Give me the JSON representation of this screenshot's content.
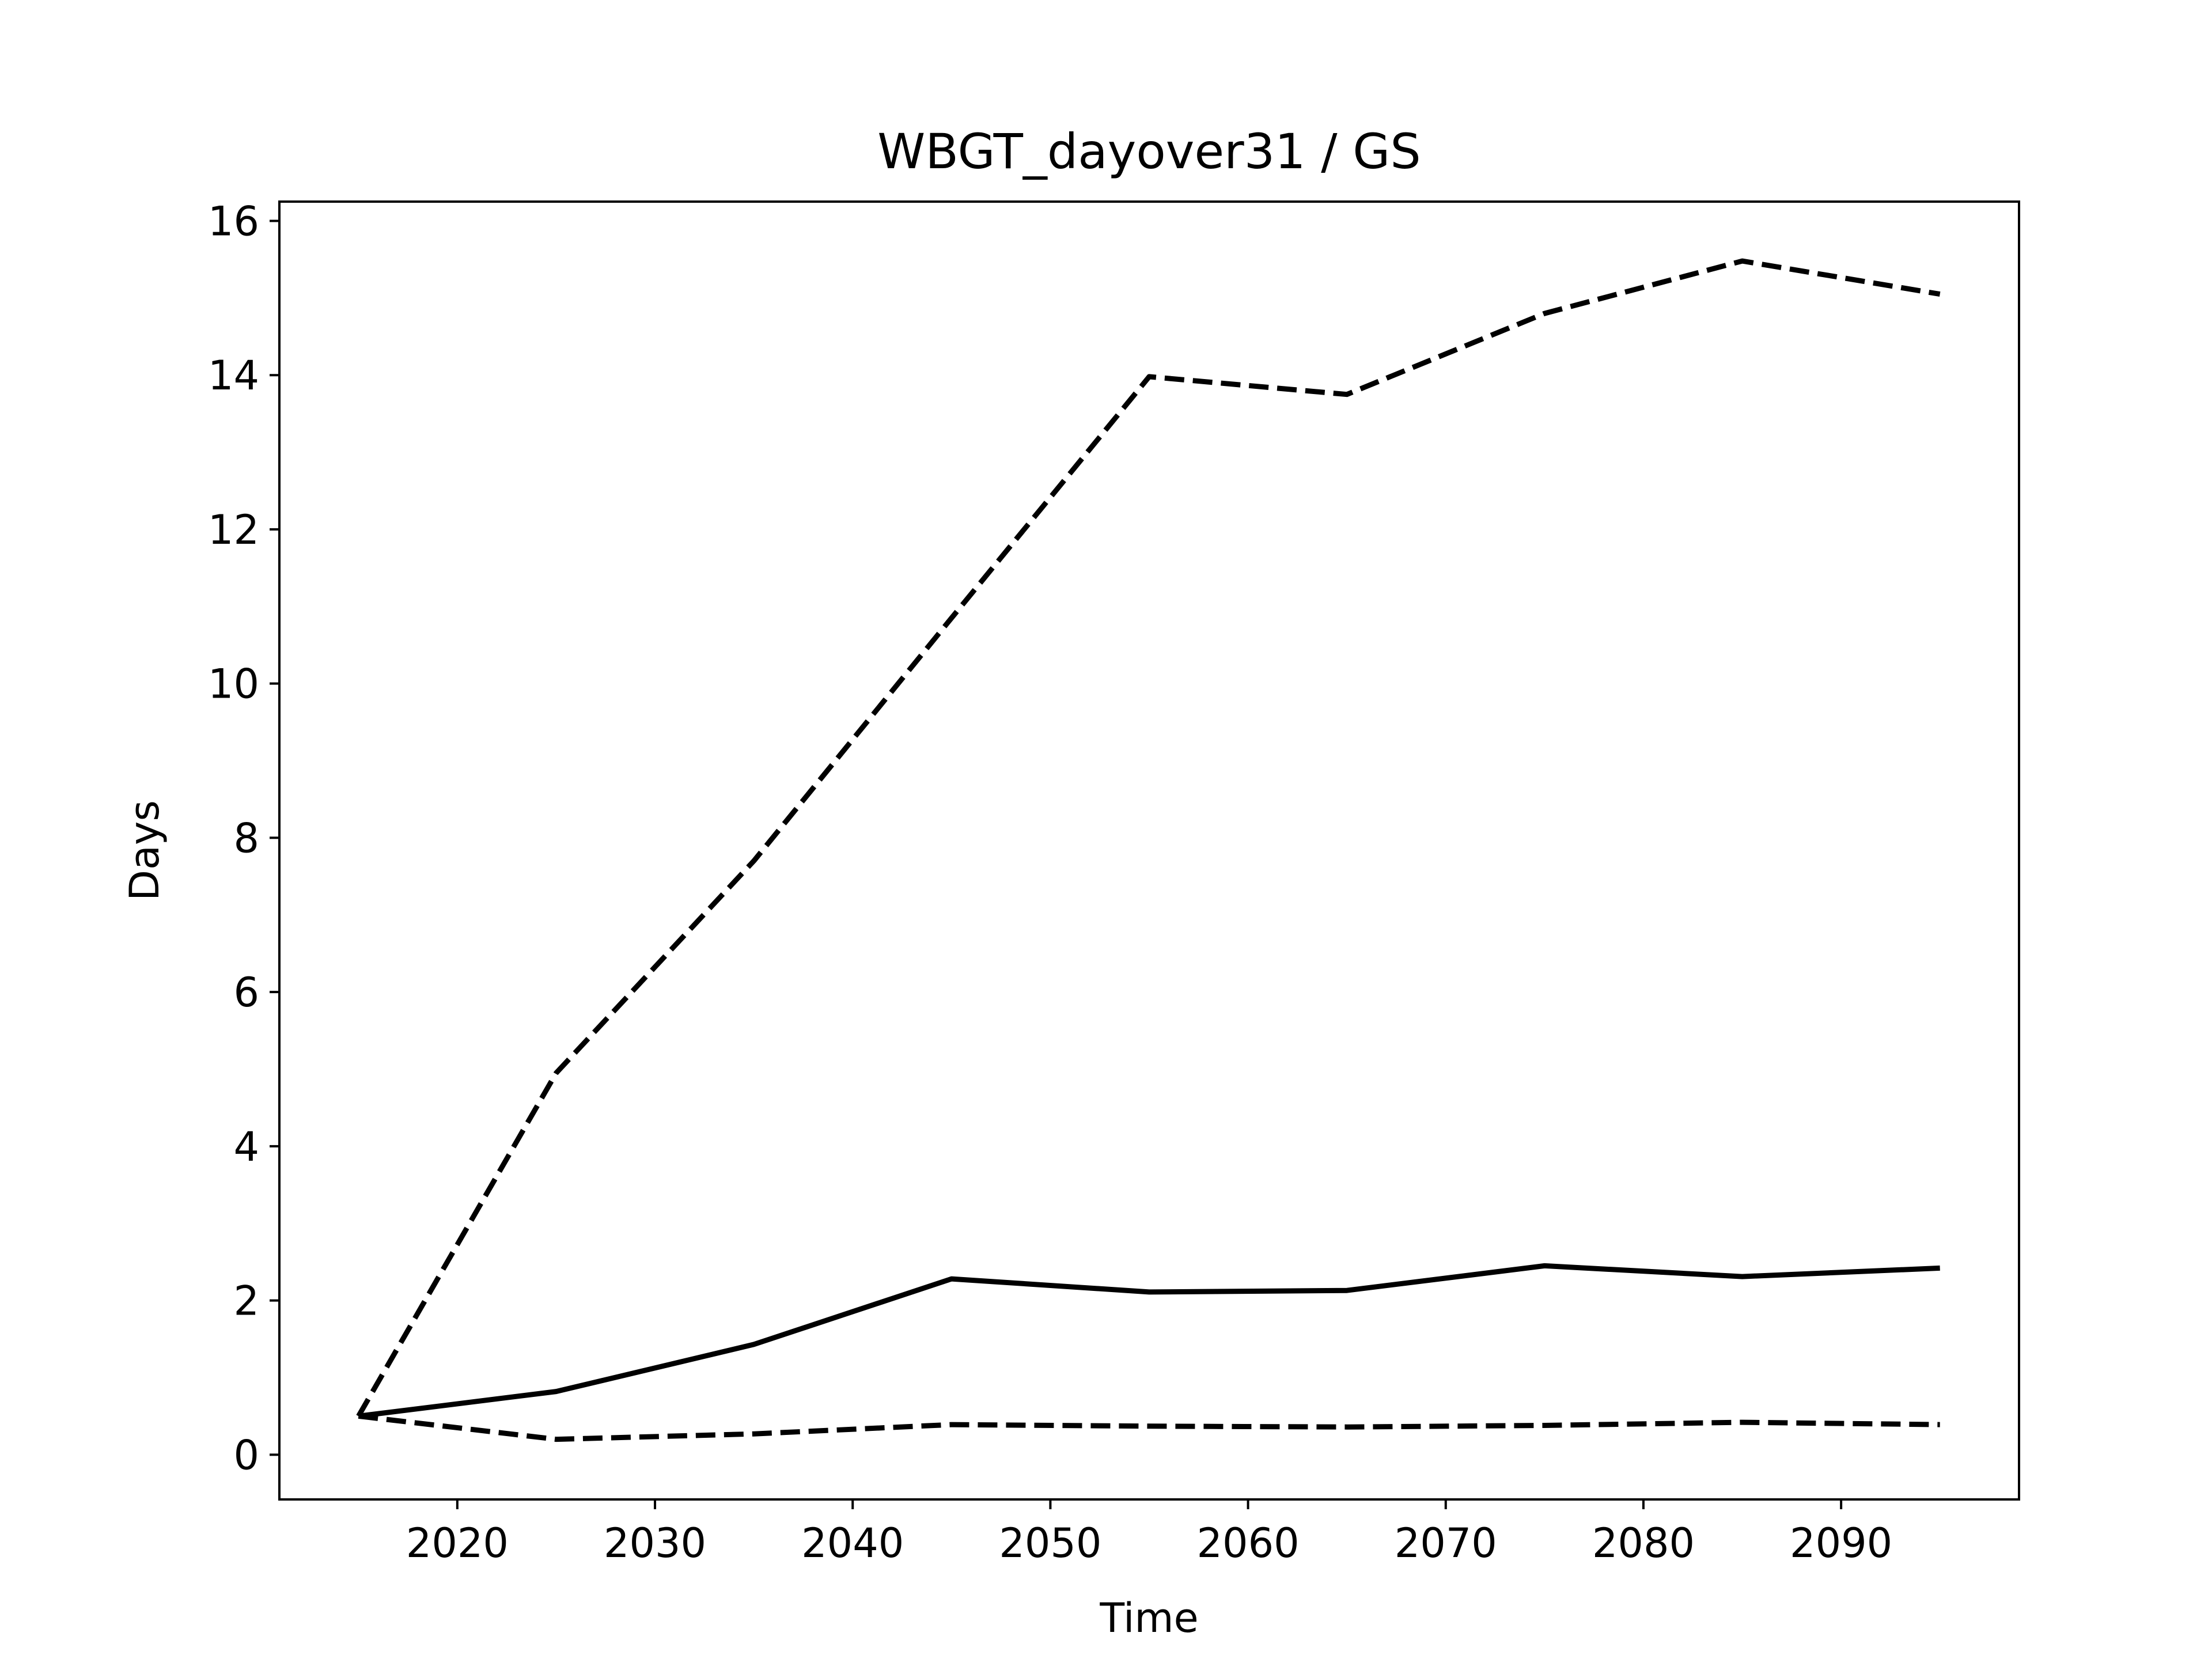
{
  "chart_data": {
    "type": "line",
    "title": "WBGT_dayover31 / GS",
    "xlabel": "Time",
    "ylabel": "Days",
    "xlim": [
      2011,
      2099
    ],
    "ylim": [
      -0.58,
      16.25
    ],
    "xticks": [
      2020,
      2030,
      2040,
      2050,
      2060,
      2070,
      2080,
      2090
    ],
    "yticks": [
      0,
      2,
      4,
      6,
      8,
      10,
      12,
      14,
      16
    ],
    "grid": false,
    "legend": "none",
    "x": [
      2015,
      2025,
      2035,
      2045,
      2055,
      2065,
      2075,
      2085,
      2095
    ],
    "series": [
      {
        "style": "solid",
        "color": "#000000",
        "values": [
          0.5,
          0.82,
          1.43,
          2.28,
          2.11,
          2.13,
          2.45,
          2.31,
          2.42
        ]
      },
      {
        "style": "dashed",
        "color": "#000000",
        "values": [
          0.5,
          4.95,
          7.7,
          10.85,
          13.98,
          13.75,
          14.8,
          15.48,
          15.05
        ]
      },
      {
        "style": "dashed",
        "color": "#000000",
        "values": [
          0.5,
          0.2,
          0.27,
          0.39,
          0.37,
          0.36,
          0.38,
          0.42,
          0.39
        ]
      }
    ]
  }
}
